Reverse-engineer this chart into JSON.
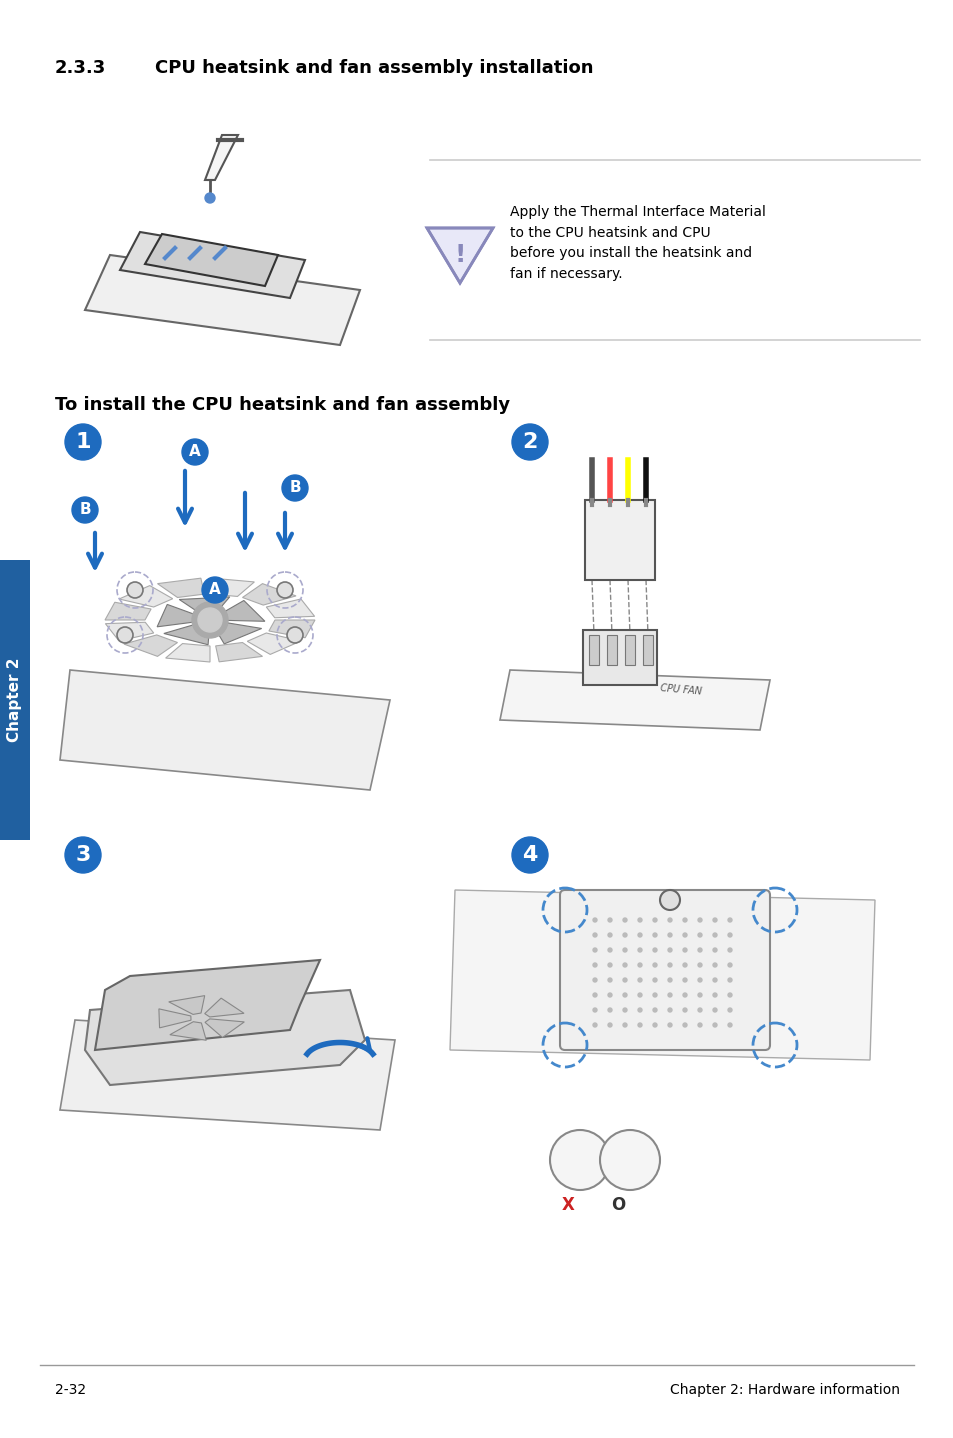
{
  "title_section": "2.3.3",
  "title_text": "CPU heatsink and fan assembly installation",
  "subtitle": "To install the CPU heatsink and fan assembly",
  "warning_text": "Apply the Thermal Interface Material\nto the CPU heatsink and CPU\nbefore you install the heatsink and\nfan if necessary.",
  "footer_left": "2-32",
  "footer_right": "Chapter 2: Hardware information",
  "sidebar_text": "Chapter 2",
  "bg_color": "#ffffff",
  "text_color": "#000000",
  "blue_color": "#1e6bbf",
  "sidebar_bg": "#2060a0",
  "step_circle_color": "#1e6bbf",
  "warning_triangle_color": "#8888cc",
  "gray_line": "#cccccc"
}
